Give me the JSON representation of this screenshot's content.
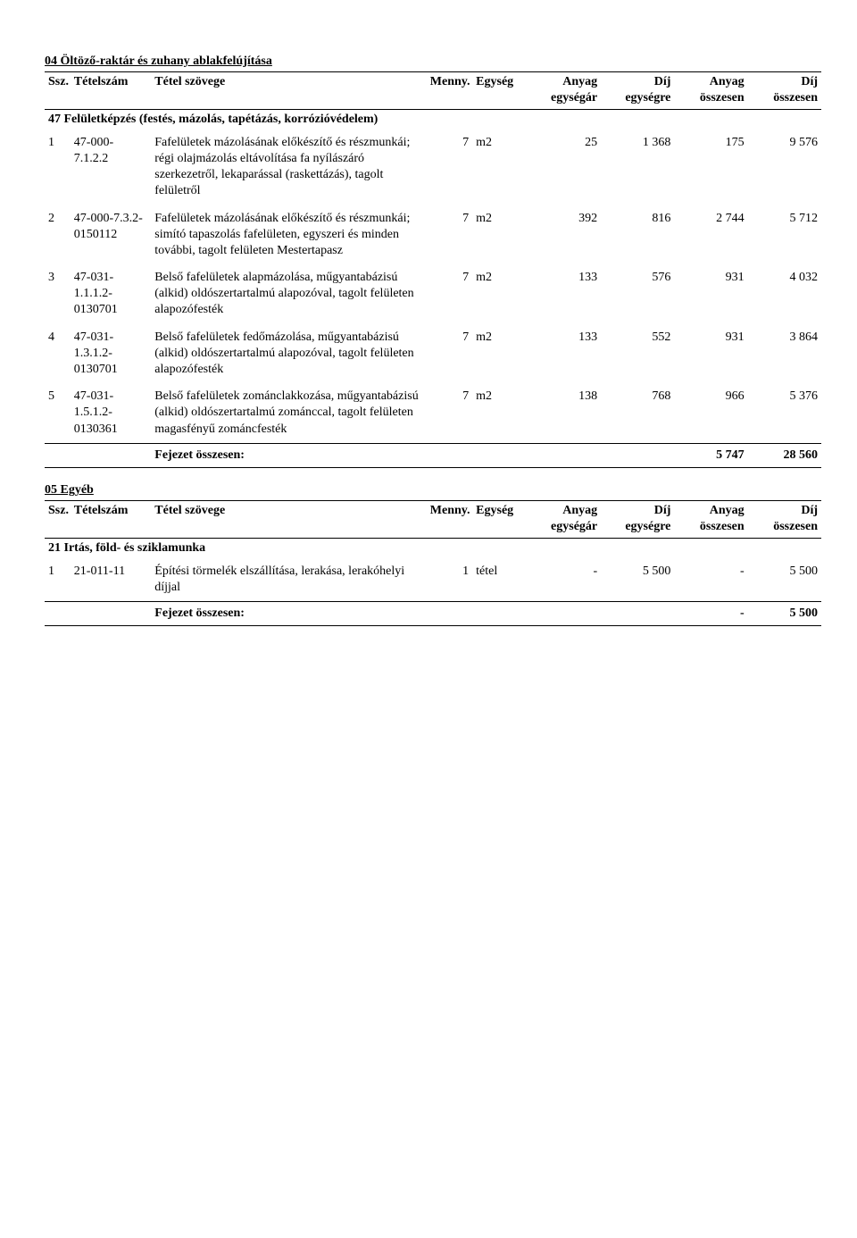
{
  "sections": [
    {
      "title": "04 Öltöző-raktár és zuhany ablakfelújítása",
      "header": {
        "ssz": "Ssz.",
        "tetelszam": "Tételszám",
        "tetel_szovege": "Tétel szövege",
        "menny": "Menny.",
        "egyseg": "Egység",
        "anyag_egysegar": "Anyag",
        "anyag_egysegar_sub": "egységár",
        "dij_egysegre": "Díj",
        "dij_egysegre_sub": "egységre",
        "anyag_osszesen": "Anyag",
        "anyag_osszesen_sub": "összesen",
        "dij_osszesen": "Díj",
        "dij_osszesen_sub": "összesen"
      },
      "group_title": "47 Felületképzés (festés, mázolás, tapétázás, korrózióvédelem)",
      "rows": [
        {
          "ssz": "1",
          "szam": "47-000-7.1.2.2",
          "text": "Fafelületek mázolásának előkészítő és részmunkái; régi olajmázolás eltávolítása fa nyílászáró szerkezetről, lekaparással (raskettázás), tagolt felületről",
          "menny": "7",
          "egyseg": "m2",
          "ae": "25",
          "de": "1 368",
          "ao": "175",
          "do": "9 576"
        },
        {
          "ssz": "2",
          "szam": "47-000-7.3.2-0150112",
          "text": "Fafelületek mázolásának előkészítő és részmunkái; simító tapaszolás fafelületen, egyszeri és minden további, tagolt felületen Mestertapasz",
          "menny": "7",
          "egyseg": "m2",
          "ae": "392",
          "de": "816",
          "ao": "2 744",
          "do": "5 712"
        },
        {
          "ssz": "3",
          "szam": "47-031-1.1.1.2-0130701",
          "text": "Belső fafelületek alapmázolása, műgyantabázisú (alkid) oldószertartalmú alapozóval, tagolt felületen alapozófesték",
          "menny": "7",
          "egyseg": "m2",
          "ae": "133",
          "de": "576",
          "ao": "931",
          "do": "4 032"
        },
        {
          "ssz": "4",
          "szam": "47-031-1.3.1.2-0130701",
          "text": "Belső fafelületek fedőmázolása, műgyantabázisú (alkid) oldószertartalmú alapozóval, tagolt felületen alapozófesték",
          "menny": "7",
          "egyseg": "m2",
          "ae": "133",
          "de": "552",
          "ao": "931",
          "do": "3 864"
        },
        {
          "ssz": "5",
          "szam": "47-031-1.5.1.2-0130361",
          "text": "Belső fafelületek zománclakkozása, műgyantabázisú (alkid) oldószertartalmú zománccal, tagolt felületen magasfényű zománcfesték",
          "menny": "7",
          "egyseg": "m2",
          "ae": "138",
          "de": "768",
          "ao": "966",
          "do": "5 376"
        }
      ],
      "fejezet_label": "Fejezet összesen:",
      "fejezet_ao": "5 747",
      "fejezet_do": "28 560"
    },
    {
      "title": "05 Egyéb",
      "header": {
        "ssz": "Ssz.",
        "tetelszam": "Tételszám",
        "tetel_szovege": "Tétel szövege",
        "menny": "Menny.",
        "egyseg": "Egység",
        "anyag_egysegar": "Anyag",
        "anyag_egysegar_sub": "egységár",
        "dij_egysegre": "Díj",
        "dij_egysegre_sub": "egységre",
        "anyag_osszesen": "Anyag",
        "anyag_osszesen_sub": "összesen",
        "dij_osszesen": "Díj",
        "dij_osszesen_sub": "összesen"
      },
      "group_title": "21 Irtás, föld- és sziklamunka",
      "rows": [
        {
          "ssz": "1",
          "szam": "21-011-11",
          "text": "Építési törmelék elszállítása, lerakása, lerakóhelyi díjjal",
          "menny": "1",
          "egyseg": "tétel",
          "ae": "-",
          "de": "5 500",
          "ao": "-",
          "do": "5 500"
        }
      ],
      "fejezet_label": "Fejezet összesen:",
      "fejezet_ao": "-",
      "fejezet_do": "5 500"
    }
  ]
}
